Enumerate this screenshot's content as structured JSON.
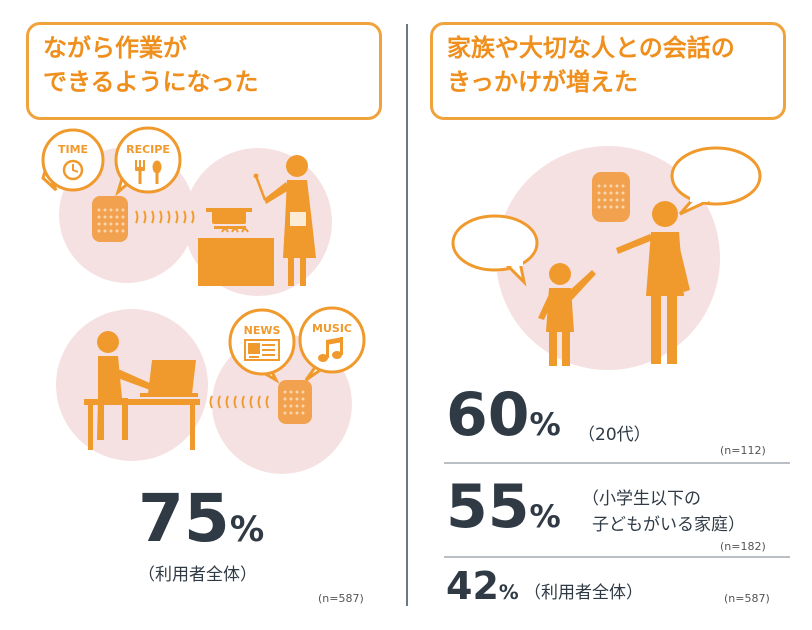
{
  "left": {
    "headline_line1": "ながら作業が",
    "headline_line2": "できるようになった",
    "bubbles": {
      "time": "TIME",
      "recipe": "RECIPE",
      "news": "NEWS",
      "music": "MUSIC"
    },
    "stat_value": "75",
    "stat_unit": "%",
    "stat_label": "（利用者全体）",
    "stat_n": "(n=587)"
  },
  "right": {
    "headline_line1": "家族や大切な人との会話の",
    "headline_line2": "きっかけが増えた",
    "stats": [
      {
        "value": "60",
        "unit": "%",
        "label": "（20代）",
        "n": "(n=112)"
      },
      {
        "value": "55",
        "unit": "%",
        "label_line1": "（小学生以下の",
        "label_line2": "子どもがいる家庭）",
        "n": "(n=182)"
      },
      {
        "value": "42",
        "unit": "%",
        "label": "（利用者全体）",
        "n": "(n=587)"
      }
    ]
  },
  "colors": {
    "orange": "#f09a2e",
    "pink": "#f6e1e2",
    "dark": "#2f3a45",
    "speaker": "#f2a24e"
  }
}
